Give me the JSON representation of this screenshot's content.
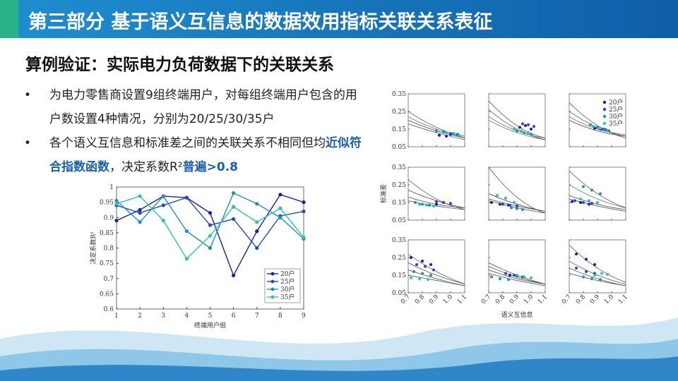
{
  "header": {
    "title": "第三部分  基于语义互信息的数据效用指标关联关系表征"
  },
  "subtitle": "算例验证：实际电力负荷数据下的关联关系",
  "bullets": [
    {
      "parts": [
        {
          "text": "为电力零售商设置9组终端用户，对每组终端用户包含的用户数设置4种情况，分别为20/25/30/35户",
          "emph": false
        }
      ]
    },
    {
      "parts": [
        {
          "text": "各个语义互信息和标准差之间的关联关系不相同但均",
          "emph": false
        },
        {
          "text": "近似符合指数函数",
          "emph": true
        },
        {
          "text": "，决定系数R²",
          "emph": false
        },
        {
          "text": "普遍>0.8",
          "emph": true
        }
      ]
    }
  ],
  "chart_data": [
    {
      "type": "line",
      "xlabel": "终端用户组",
      "ylabel": "决定系数R²",
      "x": [
        1,
        2,
        3,
        4,
        5,
        6,
        7,
        8,
        9
      ],
      "xlim": [
        1,
        9
      ],
      "xticks": [
        1,
        2,
        3,
        4,
        5,
        6,
        7,
        8,
        9
      ],
      "ylim": [
        0.6,
        1
      ],
      "yticks": [
        0.6,
        0.65,
        0.7,
        0.75,
        0.8,
        0.85,
        0.9,
        0.95,
        1
      ],
      "legend": "lower right",
      "series": [
        {
          "name": "20户",
          "color": "#1a1f9c",
          "values": [
            0.89,
            0.925,
            0.97,
            0.965,
            0.915,
            0.71,
            0.855,
            0.975,
            0.95
          ]
        },
        {
          "name": "25户",
          "color": "#2447c9",
          "values": [
            0.94,
            0.915,
            0.94,
            0.965,
            0.875,
            0.895,
            0.8,
            0.905,
            0.92
          ]
        },
        {
          "name": "30户",
          "color": "#1f8fb8",
          "values": [
            0.955,
            0.885,
            0.97,
            0.855,
            0.8,
            0.98,
            0.945,
            0.9,
            0.83
          ]
        },
        {
          "name": "35户",
          "color": "#2ec4a0",
          "values": [
            0.945,
            0.97,
            0.89,
            0.765,
            0.84,
            0.935,
            0.885,
            0.93,
            0.835
          ]
        }
      ]
    },
    {
      "type": "scatter",
      "xlabel": "语义互信息",
      "ylabel": "标准差",
      "xlim": [
        0.7,
        1.1
      ],
      "xticks": [
        0.7,
        0.8,
        0.9,
        {
          "value": 1,
          "label": "1.0"
        },
        1.1
      ],
      "ylim": [
        0.05,
        0.35
      ],
      "yticks": [
        0.05,
        0.15,
        0.25,
        0.35
      ],
      "series_names": [
        "20户",
        "25户",
        "30户",
        "35户"
      ],
      "colors": [
        "#1a1f9c",
        "#2447c9",
        "#1f8fb8",
        "#2ec4a0"
      ],
      "curve_x": [
        0.7,
        0.9,
        1.1
      ],
      "panels": [
        {
          "series": [
            {
              "x": [
                0.92,
                0.97,
                1.0
              ],
              "y": [
                0.115,
                0.11,
                0.12
              ]
            },
            {
              "x": [
                0.95,
                1.0,
                1.05
              ],
              "y": [
                0.135,
                0.125,
                0.12
              ]
            },
            {
              "x": [
                0.9,
                0.95,
                1.02
              ],
              "y": [
                0.14,
                0.135,
                0.125
              ]
            },
            {
              "x": [
                0.97,
                1.03,
                1.06
              ],
              "y": [
                0.13,
                0.12,
                0.115
              ]
            }
          ],
          "curves": [
            [
              0.25,
              0.16,
              0.1
            ],
            [
              0.22,
              0.15,
              0.11
            ],
            [
              0.2,
              0.14,
              0.1
            ],
            [
              0.18,
              0.13,
              0.09
            ]
          ]
        },
        {
          "series": [
            {
              "x": [
                0.92,
                0.96,
                1.0
              ],
              "y": [
                0.16,
                0.17,
                0.15
              ]
            },
            {
              "x": [
                0.94,
                0.98,
                1.02
              ],
              "y": [
                0.18,
                0.175,
                0.165
              ]
            },
            {
              "x": [
                0.9,
                0.95,
                1.0
              ],
              "y": [
                0.14,
                0.13,
                0.12
              ]
            },
            {
              "x": [
                0.88,
                0.93,
                0.98
              ],
              "y": [
                0.15,
                0.14,
                0.13
              ]
            }
          ],
          "curves": [
            [
              0.31,
              0.17,
              0.1
            ],
            [
              0.26,
              0.15,
              0.09
            ],
            [
              0.22,
              0.14,
              0.1
            ],
            [
              0.2,
              0.13,
              0.09
            ]
          ]
        },
        {
          "series": [
            {
              "x": [
                0.88,
                0.92,
                0.96
              ],
              "y": [
                0.155,
                0.15,
                0.145
              ]
            },
            {
              "x": [
                0.9,
                0.94,
                0.98
              ],
              "y": [
                0.16,
                0.15,
                0.14
              ]
            },
            {
              "x": [
                0.85,
                0.9,
                0.95
              ],
              "y": [
                0.175,
                0.16,
                0.15
              ]
            },
            {
              "x": [
                0.87,
                0.92,
                0.97
              ],
              "y": [
                0.165,
                0.155,
                0.14
              ]
            }
          ],
          "curves": [
            [
              0.3,
              0.17,
              0.1
            ],
            [
              0.25,
              0.16,
              0.11
            ],
            [
              0.22,
              0.15,
              0.12
            ],
            [
              0.2,
              0.14,
              0.11
            ]
          ]
        },
        {
          "series": [
            {
              "x": [
                0.85,
                0.9,
                0.95
              ],
              "y": [
                0.135,
                0.14,
                0.15
              ]
            },
            {
              "x": [
                0.9,
                0.95,
                1.0
              ],
              "y": [
                0.155,
                0.15,
                0.145
              ]
            },
            {
              "x": [
                0.75,
                0.8,
                0.85
              ],
              "y": [
                0.15,
                0.14,
                0.135
              ]
            },
            {
              "x": [
                0.78,
                0.83,
                0.88
              ],
              "y": [
                0.14,
                0.135,
                0.13
              ]
            }
          ],
          "curves": [
            [
              0.28,
              0.17,
              0.11
            ],
            [
              0.22,
              0.16,
              0.12
            ],
            [
              0.18,
              0.14,
              0.12
            ],
            [
              0.16,
              0.13,
              0.11
            ]
          ]
        },
        {
          "series": [
            {
              "x": [
                0.72,
                0.78,
                0.84
              ],
              "y": [
                0.15,
                0.14,
                0.135
              ]
            },
            {
              "x": [
                0.8,
                0.85,
                0.9
              ],
              "y": [
                0.14,
                0.135,
                0.13
              ]
            },
            {
              "x": [
                0.86,
                0.9,
                0.94
              ],
              "y": [
                0.12,
                0.115,
                0.11
              ]
            },
            {
              "x": [
                0.76,
                0.82,
                0.88
              ],
              "y": [
                0.19,
                0.175,
                0.15
              ]
            }
          ],
          "curves": [
            [
              0.35,
              0.18,
              0.09
            ],
            [
              0.2,
              0.14,
              0.1
            ],
            [
              0.17,
              0.13,
              0.1
            ],
            [
              0.16,
              0.12,
              0.09
            ]
          ]
        },
        {
          "series": [
            {
              "x": [
                0.72,
                0.78,
                0.84
              ],
              "y": [
                0.155,
                0.15,
                0.14
              ]
            },
            {
              "x": [
                0.74,
                0.8,
                0.86
              ],
              "y": [
                0.16,
                0.15,
                0.145
              ]
            },
            {
              "x": [
                0.8,
                0.86,
                0.92
              ],
              "y": [
                0.24,
                0.22,
                0.2
              ]
            },
            {
              "x": [
                0.78,
                0.84,
                0.9
              ],
              "y": [
                0.17,
                0.16,
                0.15
              ]
            }
          ],
          "curves": [
            [
              0.33,
              0.2,
              0.12
            ],
            [
              0.25,
              0.17,
              0.12
            ],
            [
              0.19,
              0.14,
              0.11
            ],
            [
              0.17,
              0.13,
              0.1
            ]
          ]
        },
        {
          "series": [
            {
              "x": [
                0.72,
                0.8,
                0.86
              ],
              "y": [
                0.25,
                0.23,
                0.21
              ]
            },
            {
              "x": [
                0.76,
                0.82,
                0.88
              ],
              "y": [
                0.21,
                0.2,
                0.18
              ]
            },
            {
              "x": [
                0.74,
                0.8,
                0.86
              ],
              "y": [
                0.17,
                0.16,
                0.15
              ]
            },
            {
              "x": [
                0.72,
                0.78,
                0.84
              ],
              "y": [
                0.135,
                0.13,
                0.125
              ]
            }
          ],
          "curves": [
            [
              0.27,
              0.17,
              0.1
            ],
            [
              0.22,
              0.15,
              0.1
            ],
            [
              0.18,
              0.13,
              0.09
            ],
            [
              0.15,
              0.12,
              0.09
            ]
          ]
        },
        {
          "series": [
            {
              "x": [
                0.85,
                0.9,
                0.95
              ],
              "y": [
                0.15,
                0.145,
                0.14
              ]
            },
            {
              "x": [
                0.82,
                0.88,
                0.94
              ],
              "y": [
                0.16,
                0.15,
                0.14
              ]
            },
            {
              "x": [
                0.72,
                0.78,
                0.84
              ],
              "y": [
                0.14,
                0.13,
                0.125
              ]
            },
            {
              "x": [
                0.9,
                0.95,
                1.0
              ],
              "y": [
                0.15,
                0.14,
                0.135
              ]
            }
          ],
          "curves": [
            [
              0.22,
              0.15,
              0.1
            ],
            [
              0.2,
              0.14,
              0.1
            ],
            [
              0.18,
              0.13,
              0.1
            ],
            [
              0.16,
              0.12,
              0.09
            ]
          ]
        },
        {
          "series": [
            {
              "x": [
                0.75,
                0.82,
                0.88
              ],
              "y": [
                0.27,
                0.24,
                0.21
              ]
            },
            {
              "x": [
                0.75,
                0.82,
                0.88
              ],
              "y": [
                0.19,
                0.17,
                0.16
              ]
            },
            {
              "x": [
                0.8,
                0.86,
                0.92
              ],
              "y": [
                0.14,
                0.13,
                0.125
              ]
            },
            {
              "x": [
                0.88,
                0.93,
                0.97
              ],
              "y": [
                0.15,
                0.16,
                0.155
              ]
            }
          ],
          "curves": [
            [
              0.32,
              0.19,
              0.11
            ],
            [
              0.23,
              0.15,
              0.1
            ],
            [
              0.19,
              0.13,
              0.09
            ],
            [
              0.16,
              0.12,
              0.09
            ]
          ]
        }
      ]
    }
  ]
}
